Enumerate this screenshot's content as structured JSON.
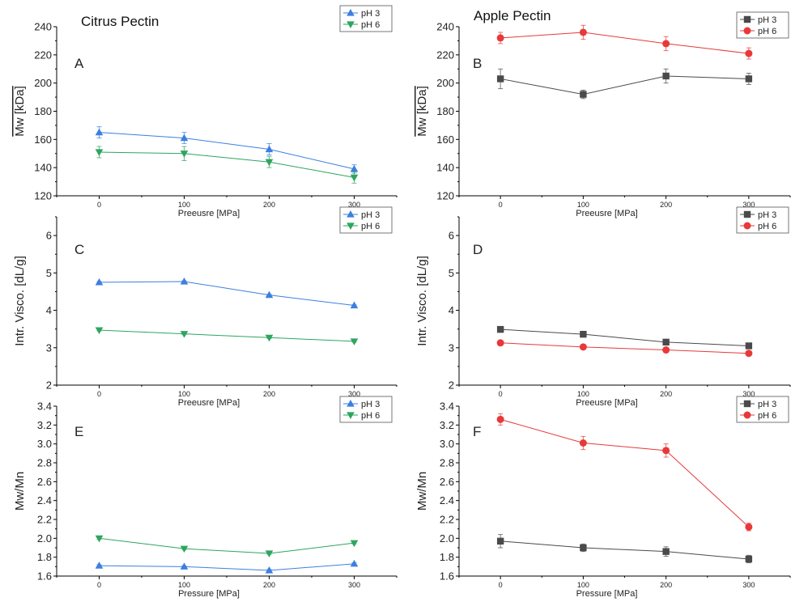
{
  "figure": {
    "left_title": "Citrus Pectin",
    "right_title": "Apple Pectin"
  },
  "colors": {
    "citrus_ph3": "#3c7fe0",
    "citrus_ph6": "#2ea55f",
    "apple_ph3": "#4a4a4a",
    "apple_ph6": "#e8393a",
    "axis": "#000000"
  },
  "chart_data": [
    {
      "id": "A",
      "panel_label": "A",
      "type": "line",
      "x": [
        0,
        100,
        200,
        300
      ],
      "xticks": [
        "0",
        "100",
        "200",
        "300"
      ],
      "xlabel": "Preeusre [MPa]",
      "ylabel": "Mw [kDa]",
      "ylim": [
        120,
        240
      ],
      "yticks": [
        120,
        140,
        160,
        180,
        200,
        220,
        240
      ],
      "ytick_decimals": 0,
      "grid": false,
      "legend": "top-right",
      "series": [
        {
          "name": "pH 3",
          "marker": "triangle-up",
          "color": "#3c7fe0",
          "values": [
            165,
            161,
            153,
            139
          ],
          "errors": [
            4,
            4,
            4,
            3
          ]
        },
        {
          "name": "pH 6",
          "marker": "triangle-down",
          "color": "#2ea55f",
          "values": [
            151,
            150,
            144,
            133
          ],
          "errors": [
            4,
            5,
            4,
            4
          ]
        }
      ]
    },
    {
      "id": "B",
      "panel_label": "B",
      "type": "line",
      "x": [
        0,
        100,
        200,
        300
      ],
      "xticks": [
        "0",
        "100",
        "200",
        "300"
      ],
      "xlabel": "Preeusre [MPa]",
      "ylabel": "Mw [kDa]",
      "ylim": [
        120,
        240
      ],
      "yticks": [
        120,
        140,
        160,
        180,
        200,
        220,
        240
      ],
      "ytick_decimals": 0,
      "grid": false,
      "legend": "top-right",
      "series": [
        {
          "name": "pH 3",
          "marker": "square",
          "color": "#4a4a4a",
          "values": [
            203,
            192,
            205,
            203
          ],
          "errors": [
            7,
            3,
            5,
            4
          ]
        },
        {
          "name": "pH 6",
          "marker": "circle",
          "color": "#e8393a",
          "values": [
            232,
            236,
            228,
            221
          ],
          "errors": [
            4,
            5,
            5,
            4
          ]
        }
      ]
    },
    {
      "id": "C",
      "panel_label": "C",
      "type": "line",
      "x": [
        0,
        100,
        200,
        300
      ],
      "xticks": [
        "0",
        "100",
        "200",
        "300"
      ],
      "xlabel": "Preeusre [MPa]",
      "ylabel": "Intr. Visco. [dL/g]",
      "ylim": [
        2,
        6.5
      ],
      "yticks": [
        2,
        3,
        4,
        5,
        6
      ],
      "ytick_decimals": 0,
      "grid": false,
      "legend": "top-right",
      "series": [
        {
          "name": "pH 3",
          "marker": "triangle-up",
          "color": "#3c7fe0",
          "values": [
            4.75,
            4.77,
            4.41,
            4.13
          ],
          "errors": [
            0.02,
            0.02,
            0.02,
            0.02
          ]
        },
        {
          "name": "pH 6",
          "marker": "triangle-down",
          "color": "#2ea55f",
          "values": [
            3.47,
            3.37,
            3.27,
            3.17
          ],
          "errors": [
            0.02,
            0.02,
            0.02,
            0.02
          ]
        }
      ]
    },
    {
      "id": "D",
      "panel_label": "D",
      "type": "line",
      "x": [
        0,
        100,
        200,
        300
      ],
      "xticks": [
        "0",
        "100",
        "200",
        "300"
      ],
      "xlabel": "Preeusre [MPa]",
      "ylabel": "Intr. Visco. [dL/g]",
      "ylim": [
        2,
        6.5
      ],
      "yticks": [
        2,
        3,
        4,
        5,
        6
      ],
      "ytick_decimals": 0,
      "grid": false,
      "legend": "top-right",
      "series": [
        {
          "name": "pH 3",
          "marker": "square",
          "color": "#4a4a4a",
          "values": [
            3.49,
            3.36,
            3.15,
            3.05
          ],
          "errors": [
            0.02,
            0.02,
            0.02,
            0.02
          ]
        },
        {
          "name": "pH 6",
          "marker": "circle",
          "color": "#e8393a",
          "values": [
            3.13,
            3.02,
            2.94,
            2.85
          ],
          "errors": [
            0.02,
            0.02,
            0.02,
            0.02
          ]
        }
      ]
    },
    {
      "id": "E",
      "panel_label": "E",
      "type": "line",
      "x": [
        0,
        100,
        200,
        300
      ],
      "xticks": [
        "0",
        "100",
        "200",
        "300"
      ],
      "xlabel": "Pressure [MPa]",
      "ylabel": "Mw/Mn",
      "ylim": [
        1.6,
        3.4
      ],
      "yticks": [
        1.6,
        1.8,
        2.0,
        2.2,
        2.4,
        2.6,
        2.8,
        3.0,
        3.2,
        3.4
      ],
      "ytick_decimals": 1,
      "grid": false,
      "legend": "top-right",
      "series": [
        {
          "name": "pH 3",
          "marker": "triangle-up",
          "color": "#3c7fe0",
          "values": [
            1.71,
            1.7,
            1.66,
            1.73
          ],
          "errors": [
            0.01,
            0.01,
            0.01,
            0.01
          ]
        },
        {
          "name": "pH 6",
          "marker": "triangle-down",
          "color": "#2ea55f",
          "values": [
            2.0,
            1.89,
            1.84,
            1.95
          ],
          "errors": [
            0.01,
            0.01,
            0.01,
            0.01
          ]
        }
      ]
    },
    {
      "id": "F",
      "panel_label": "F",
      "type": "line",
      "x": [
        0,
        100,
        200,
        300
      ],
      "xticks": [
        "0",
        "100",
        "200",
        "300"
      ],
      "xlabel": "Pressure [MPa]",
      "ylabel": "Mw/Mn",
      "ylim": [
        1.6,
        3.4
      ],
      "yticks": [
        1.6,
        1.8,
        2.0,
        2.2,
        2.4,
        2.6,
        2.8,
        3.0,
        3.2,
        3.4
      ],
      "ytick_decimals": 1,
      "grid": false,
      "legend": "top-right",
      "series": [
        {
          "name": "pH 3",
          "marker": "square",
          "color": "#4a4a4a",
          "values": [
            1.97,
            1.9,
            1.86,
            1.78
          ],
          "errors": [
            0.07,
            0.04,
            0.05,
            0.04
          ]
        },
        {
          "name": "pH 6",
          "marker": "circle",
          "color": "#e8393a",
          "values": [
            3.26,
            3.01,
            2.93,
            2.12
          ],
          "errors": [
            0.06,
            0.07,
            0.07,
            0.04
          ]
        }
      ]
    }
  ]
}
